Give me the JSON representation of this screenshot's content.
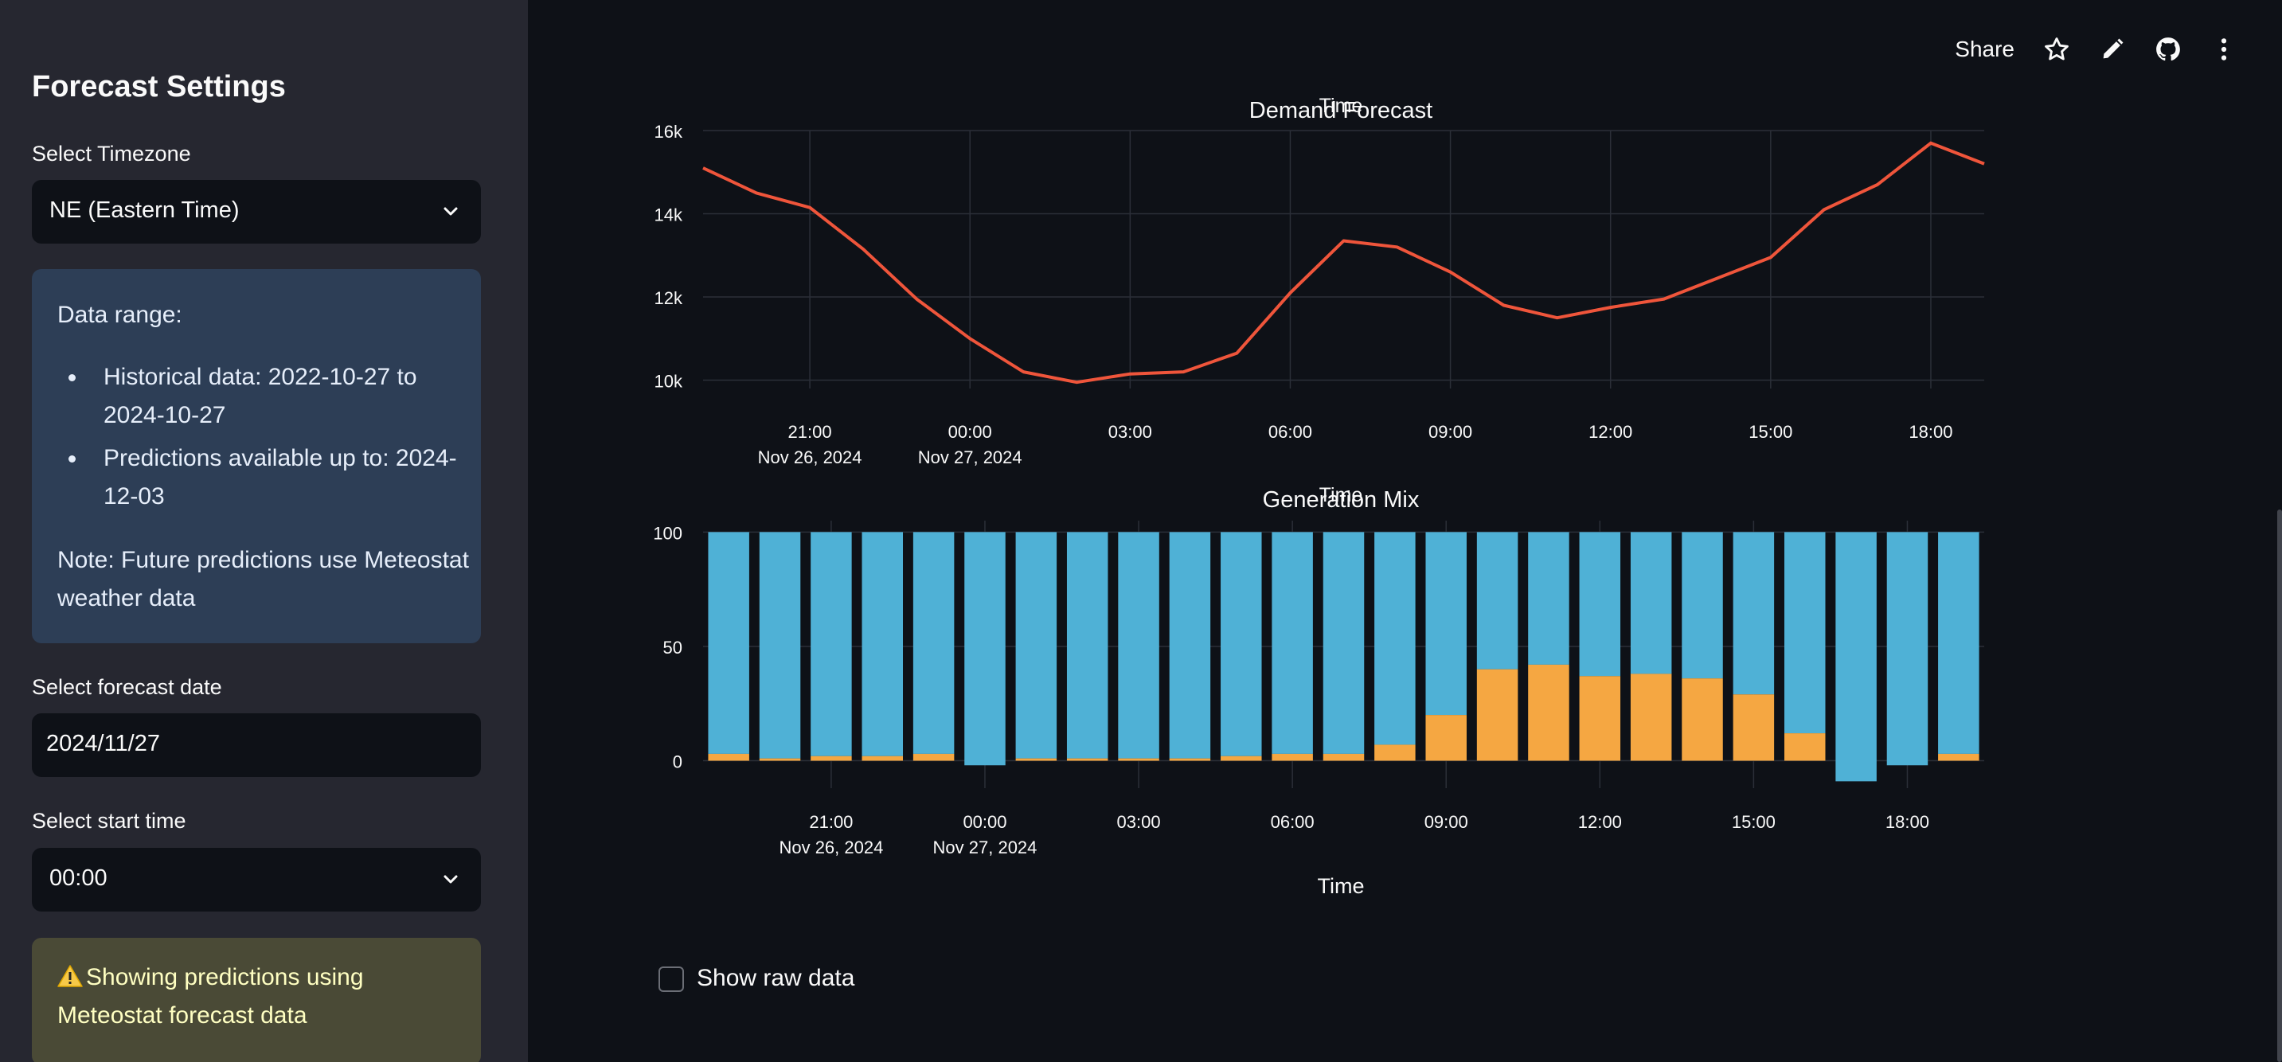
{
  "sidebar": {
    "title": "Forecast Settings",
    "timezone": {
      "label": "Select Timezone",
      "value": "NE (Eastern Time)"
    },
    "info": {
      "heading": "Data range:",
      "items": [
        "Historical data: 2022-10-27 to 2024-10-27",
        "Predictions available up to: 2024-12-03"
      ],
      "note": "Note: Future predictions use Meteostat weather data"
    },
    "forecast_date": {
      "label": "Select forecast date",
      "value": "2024/11/27"
    },
    "start_time": {
      "label": "Select start time",
      "value": "00:00"
    },
    "warning": {
      "icon": "warning-icon",
      "text": "Showing predictions using Meteostat forecast data"
    }
  },
  "toolbar": {
    "share_label": "Share",
    "icons": [
      "star-icon",
      "pencil-icon",
      "github-icon",
      "more-vertical-icon"
    ]
  },
  "colors": {
    "demand_line": "#ef553b",
    "gen_blue": "#4fb1d6",
    "gen_orange": "#f5a742",
    "sidebar_bg": "#262730",
    "main_bg": "#0e1117"
  },
  "chart_data": [
    {
      "type": "line",
      "title": "Demand Forecast",
      "overlay_label": "Time",
      "x": [
        "2024-11-26 19:00",
        "2024-11-26 20:00",
        "2024-11-26 21:00",
        "2024-11-26 22:00",
        "2024-11-26 23:00",
        "2024-11-27 00:00",
        "2024-11-27 01:00",
        "2024-11-27 02:00",
        "2024-11-27 03:00",
        "2024-11-27 04:00",
        "2024-11-27 05:00",
        "2024-11-27 06:00",
        "2024-11-27 07:00",
        "2024-11-27 08:00",
        "2024-11-27 09:00",
        "2024-11-27 10:00",
        "2024-11-27 11:00",
        "2024-11-27 12:00",
        "2024-11-27 13:00",
        "2024-11-27 14:00",
        "2024-11-27 15:00",
        "2024-11-27 16:00",
        "2024-11-27 17:00",
        "2024-11-27 18:00",
        "2024-11-27 19:00"
      ],
      "series": [
        {
          "values": [
            15100,
            14500,
            14150,
            13150,
            11950,
            11000,
            10200,
            9950,
            10150,
            10200,
            10650,
            12100,
            13350,
            13200,
            12600,
            11800,
            11500,
            11750,
            11950,
            12450,
            12950,
            14100,
            14700,
            15700,
            15200
          ]
        }
      ],
      "ylim": [
        9800,
        16000
      ],
      "yticks": [
        10000,
        12000,
        14000,
        16000
      ],
      "ytick_labels": [
        "10k",
        "12k",
        "14k",
        "16k"
      ],
      "xticks": [
        "2024-11-26 21:00",
        "2024-11-27 00:00",
        "2024-11-27 03:00",
        "2024-11-27 06:00",
        "2024-11-27 09:00",
        "2024-11-27 12:00",
        "2024-11-27 15:00",
        "2024-11-27 18:00"
      ],
      "xtick_labels": [
        [
          "21:00",
          "Nov 26, 2024"
        ],
        [
          "00:00",
          "Nov 27, 2024"
        ],
        [
          "03:00",
          ""
        ],
        [
          "06:00",
          ""
        ],
        [
          "09:00",
          ""
        ],
        [
          "12:00",
          ""
        ],
        [
          "15:00",
          ""
        ],
        [
          "18:00",
          ""
        ]
      ],
      "grid": true
    },
    {
      "type": "bar",
      "title": "Generation Mix",
      "overlay_label": "Time",
      "xlabel": "Time",
      "x": [
        "2024-11-26 19:00",
        "2024-11-26 20:00",
        "2024-11-26 21:00",
        "2024-11-26 22:00",
        "2024-11-26 23:00",
        "2024-11-27 00:00",
        "2024-11-27 01:00",
        "2024-11-27 02:00",
        "2024-11-27 03:00",
        "2024-11-27 04:00",
        "2024-11-27 05:00",
        "2024-11-27 06:00",
        "2024-11-27 07:00",
        "2024-11-27 08:00",
        "2024-11-27 09:00",
        "2024-11-27 10:00",
        "2024-11-27 11:00",
        "2024-11-27 12:00",
        "2024-11-27 13:00",
        "2024-11-27 14:00",
        "2024-11-27 15:00",
        "2024-11-27 16:00",
        "2024-11-27 17:00",
        "2024-11-27 18:00",
        "2024-11-27 19:00"
      ],
      "series": [
        {
          "color": "#f5a742",
          "values": [
            3,
            1,
            2,
            2,
            3,
            -2,
            1,
            1,
            1,
            1,
            2,
            3,
            3,
            7,
            20,
            40,
            42,
            37,
            38,
            36,
            29,
            12,
            -9,
            -2,
            3
          ]
        },
        {
          "color": "#4fb1d6",
          "values": [
            97,
            99,
            98,
            98,
            97,
            102,
            99,
            99,
            99,
            99,
            98,
            97,
            97,
            93,
            80,
            60,
            58,
            63,
            62,
            64,
            71,
            88,
            109,
            102,
            97
          ]
        }
      ],
      "ylim": [
        -12,
        105
      ],
      "yticks": [
        0,
        50,
        100
      ],
      "ytick_labels": [
        "0",
        "50",
        "100"
      ],
      "xticks": [
        "2024-11-26 21:00",
        "2024-11-27 00:00",
        "2024-11-27 03:00",
        "2024-11-27 06:00",
        "2024-11-27 09:00",
        "2024-11-27 12:00",
        "2024-11-27 15:00",
        "2024-11-27 18:00"
      ],
      "xtick_labels": [
        [
          "21:00",
          "Nov 26, 2024"
        ],
        [
          "00:00",
          "Nov 27, 2024"
        ],
        [
          "03:00",
          ""
        ],
        [
          "06:00",
          ""
        ],
        [
          "09:00",
          ""
        ],
        [
          "12:00",
          ""
        ],
        [
          "15:00",
          ""
        ],
        [
          "18:00",
          ""
        ]
      ],
      "grid": true
    }
  ],
  "raw_data_toggle": {
    "label": "Show raw data",
    "checked": false
  }
}
